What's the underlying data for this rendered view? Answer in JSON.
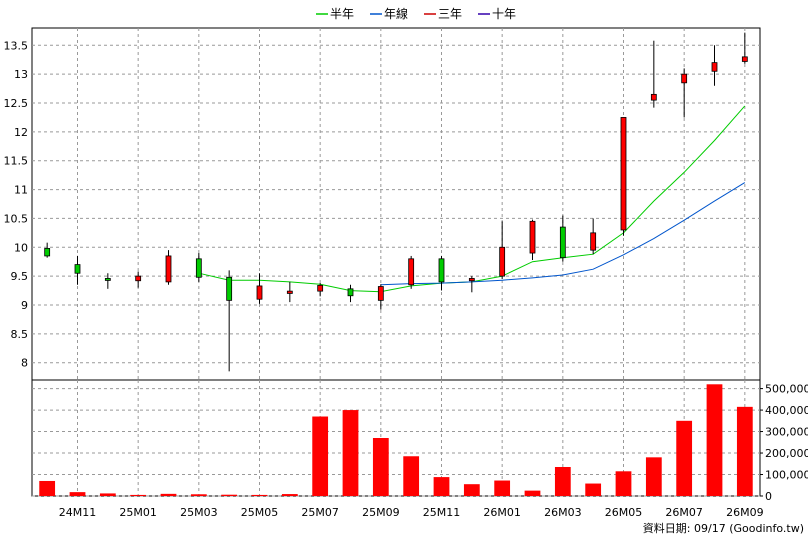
{
  "chart_data": {
    "type": "candlestick",
    "legend": [
      {
        "name": "半年",
        "color": "#00cc00"
      },
      {
        "name": "年線",
        "color": "#0055cc"
      },
      {
        "name": "三年",
        "color": "#cc0000"
      },
      {
        "name": "十年",
        "color": "#3300aa"
      }
    ],
    "price_axis": {
      "ylim": [
        7.7,
        13.8
      ],
      "ticks": [
        "8",
        "8.5",
        "9",
        "9.5",
        "10",
        "10.5",
        "11",
        "11.5",
        "12",
        "12.5",
        "13",
        "13.5"
      ],
      "tick_values": [
        8,
        8.5,
        9,
        9.5,
        10,
        10.5,
        11,
        11.5,
        12,
        12.5,
        13,
        13.5
      ]
    },
    "volume_axis": {
      "ylim": [
        0,
        540000
      ],
      "ticks": [
        "0",
        "100,000",
        "200,000",
        "300,000",
        "400,000",
        "500,000"
      ],
      "tick_values": [
        0,
        100000,
        200000,
        300000,
        400000,
        500000
      ]
    },
    "x_labels": [
      {
        "index": 1,
        "label": "24M11"
      },
      {
        "index": 3,
        "label": "25M01"
      },
      {
        "index": 5,
        "label": "25M03"
      },
      {
        "index": 7,
        "label": "25M05"
      },
      {
        "index": 9,
        "label": "25M07"
      },
      {
        "index": 11,
        "label": "25M09"
      },
      {
        "index": 13,
        "label": "25M11"
      },
      {
        "index": 15,
        "label": "26M01"
      },
      {
        "index": 17,
        "label": "26M03"
      },
      {
        "index": 19,
        "label": "26M05"
      },
      {
        "index": 21,
        "label": "26M07"
      },
      {
        "index": 23,
        "label": "26M09"
      }
    ],
    "candles": [
      {
        "open": 9.98,
        "close": 9.85,
        "high": 10.08,
        "low": 9.82,
        "up": false
      },
      {
        "open": 9.7,
        "close": 9.55,
        "high": 9.85,
        "low": 9.35,
        "up": false
      },
      {
        "open": 9.46,
        "close": 9.44,
        "high": 9.55,
        "low": 9.28,
        "up": false
      },
      {
        "open": 9.42,
        "close": 9.5,
        "high": 9.58,
        "low": 9.3,
        "up": true
      },
      {
        "open": 9.4,
        "close": 9.85,
        "high": 9.95,
        "low": 9.35,
        "up": true
      },
      {
        "open": 9.8,
        "close": 9.48,
        "high": 9.9,
        "low": 9.4,
        "up": false
      },
      {
        "open": 9.48,
        "close": 9.08,
        "high": 9.6,
        "low": 7.85,
        "up": false
      },
      {
        "open": 9.1,
        "close": 9.33,
        "high": 9.55,
        "low": 9.02,
        "up": true
      },
      {
        "open": 9.2,
        "close": 9.24,
        "high": 9.4,
        "low": 9.05,
        "up": true
      },
      {
        "open": 9.24,
        "close": 9.34,
        "high": 9.38,
        "low": 9.15,
        "up": true
      },
      {
        "open": 9.28,
        "close": 9.16,
        "high": 9.35,
        "low": 9.05,
        "up": false
      },
      {
        "open": 9.08,
        "close": 9.32,
        "high": 9.36,
        "low": 8.92,
        "up": true
      },
      {
        "open": 9.35,
        "close": 9.8,
        "high": 9.85,
        "low": 9.28,
        "up": true
      },
      {
        "open": 9.8,
        "close": 9.4,
        "high": 9.85,
        "low": 9.25,
        "up": false
      },
      {
        "open": 9.42,
        "close": 9.46,
        "high": 9.5,
        "low": 9.22,
        "up": true
      },
      {
        "open": 9.5,
        "close": 10.0,
        "high": 10.45,
        "low": 9.45,
        "up": true
      },
      {
        "open": 9.9,
        "close": 10.45,
        "high": 10.48,
        "low": 9.78,
        "up": true
      },
      {
        "open": 10.35,
        "close": 9.82,
        "high": 10.55,
        "low": 9.75,
        "up": false
      },
      {
        "open": 9.95,
        "close": 10.25,
        "high": 10.5,
        "low": 9.88,
        "up": true
      },
      {
        "open": 10.3,
        "close": 12.25,
        "high": 12.25,
        "low": 10.2,
        "up": true
      },
      {
        "open": 12.55,
        "close": 12.65,
        "high": 13.58,
        "low": 12.42,
        "up": true
      },
      {
        "open": 12.85,
        "close": 13.0,
        "high": 13.1,
        "low": 12.25,
        "up": true
      },
      {
        "open": 13.05,
        "close": 13.2,
        "high": 13.5,
        "low": 12.8,
        "up": true
      },
      {
        "open": 13.22,
        "close": 13.3,
        "high": 13.72,
        "low": 13.18,
        "up": true
      }
    ],
    "volume": [
      70000,
      18000,
      12000,
      5000,
      10000,
      8000,
      6000,
      5000,
      9000,
      370000,
      400000,
      270000,
      185000,
      88000,
      55000,
      72000,
      25000,
      135000,
      58000,
      115000,
      180000,
      350000,
      520000,
      415000
    ],
    "ma_lines": [
      {
        "name": "半年",
        "color": "#00cc00",
        "points": [
          [
            5,
            9.55
          ],
          [
            6,
            9.43
          ],
          [
            7,
            9.43
          ],
          [
            8,
            9.4
          ],
          [
            9,
            9.36
          ],
          [
            10,
            9.25
          ],
          [
            11,
            9.23
          ],
          [
            12,
            9.33
          ],
          [
            13,
            9.38
          ],
          [
            14,
            9.4
          ],
          [
            15,
            9.5
          ],
          [
            16,
            9.75
          ],
          [
            17,
            9.82
          ],
          [
            18,
            9.88
          ],
          [
            19,
            10.25
          ],
          [
            20,
            10.8
          ],
          [
            21,
            11.3
          ],
          [
            22,
            11.85
          ],
          [
            23,
            12.45
          ]
        ]
      },
      {
        "name": "年線",
        "color": "#0055cc",
        "points": [
          [
            11,
            9.35
          ],
          [
            12,
            9.37
          ],
          [
            13,
            9.38
          ],
          [
            14,
            9.4
          ],
          [
            15,
            9.43
          ],
          [
            16,
            9.47
          ],
          [
            17,
            9.52
          ],
          [
            18,
            9.62
          ],
          [
            19,
            9.87
          ],
          [
            20,
            10.15
          ],
          [
            21,
            10.47
          ],
          [
            22,
            10.8
          ],
          [
            23,
            11.12
          ]
        ]
      }
    ]
  },
  "footer": {
    "source_text": "資料日期: 09/17  (Goodinfo.tw)"
  }
}
